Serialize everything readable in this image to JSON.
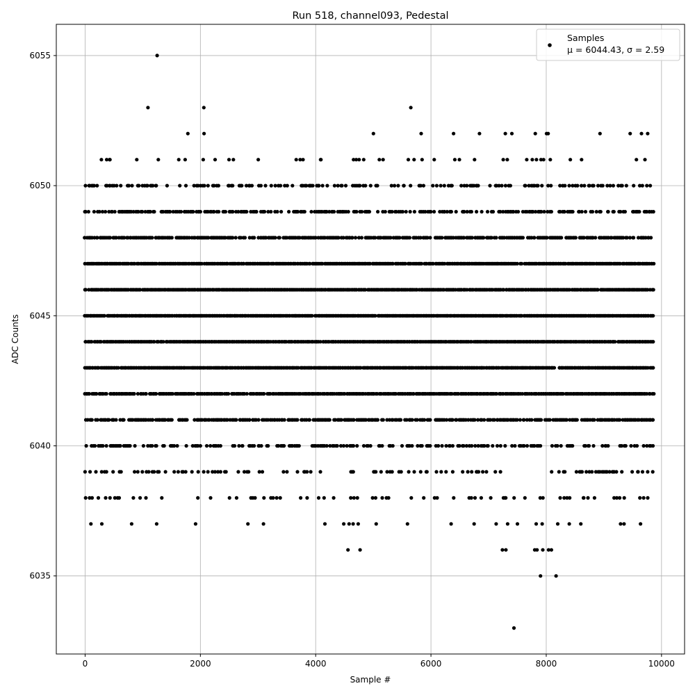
{
  "chart_data": {
    "type": "scatter",
    "title": "Run 518, channel093, Pedestal",
    "xlabel": "Sample #",
    "ylabel": "ADC Counts",
    "xlim": [
      -500,
      10400
    ],
    "ylim": [
      6032,
      6056.2
    ],
    "xticks": [
      0,
      2000,
      4000,
      6000,
      8000,
      10000
    ],
    "yticks": [
      6035,
      6040,
      6045,
      6050,
      6055
    ],
    "grid": true,
    "legend_position": "top-right",
    "marker_color": "#000000",
    "series": [
      {
        "name": "Samples",
        "stats_line": "μ = 6044.43, σ = 2.59",
        "x_range": [
          0,
          9870
        ],
        "mean": 6044.43,
        "sigma": 2.59,
        "level_density": {
          "6037": 0.03,
          "6038": 0.12,
          "6039": 0.22,
          "6040": 0.42,
          "6041": 0.7,
          "6042": 0.88,
          "6043": 0.96,
          "6044": 0.97,
          "6045": 0.98,
          "6046": 0.96,
          "6047": 0.93,
          "6048": 0.74,
          "6049": 0.5,
          "6050": 0.3,
          "6051": 0.07,
          "6052": 0.02
        },
        "notable_points": [
          {
            "x": 1250,
            "y": 6055
          },
          {
            "x": 1090,
            "y": 6053
          },
          {
            "x": 2060,
            "y": 6053
          },
          {
            "x": 5650,
            "y": 6053
          },
          {
            "x": 7440,
            "y": 6033
          },
          {
            "x": 7900,
            "y": 6035
          },
          {
            "x": 8170,
            "y": 6035
          },
          {
            "x": 4560,
            "y": 6036
          },
          {
            "x": 4770,
            "y": 6036
          },
          {
            "x": 7240,
            "y": 6036
          },
          {
            "x": 7300,
            "y": 6036
          },
          {
            "x": 7800,
            "y": 6036
          },
          {
            "x": 7840,
            "y": 6036
          },
          {
            "x": 7940,
            "y": 6036
          },
          {
            "x": 8040,
            "y": 6036
          },
          {
            "x": 8090,
            "y": 6036
          },
          {
            "x": 290,
            "y": 6037
          },
          {
            "x": 4160,
            "y": 6037
          },
          {
            "x": 4580,
            "y": 6037
          },
          {
            "x": 4650,
            "y": 6037
          },
          {
            "x": 5050,
            "y": 6037
          },
          {
            "x": 6350,
            "y": 6037
          },
          {
            "x": 7330,
            "y": 6037
          },
          {
            "x": 7500,
            "y": 6037
          },
          {
            "x": 7930,
            "y": 6037
          },
          {
            "x": 8200,
            "y": 6037
          },
          {
            "x": 8400,
            "y": 6037
          },
          {
            "x": 8600,
            "y": 6037
          }
        ]
      }
    ]
  }
}
